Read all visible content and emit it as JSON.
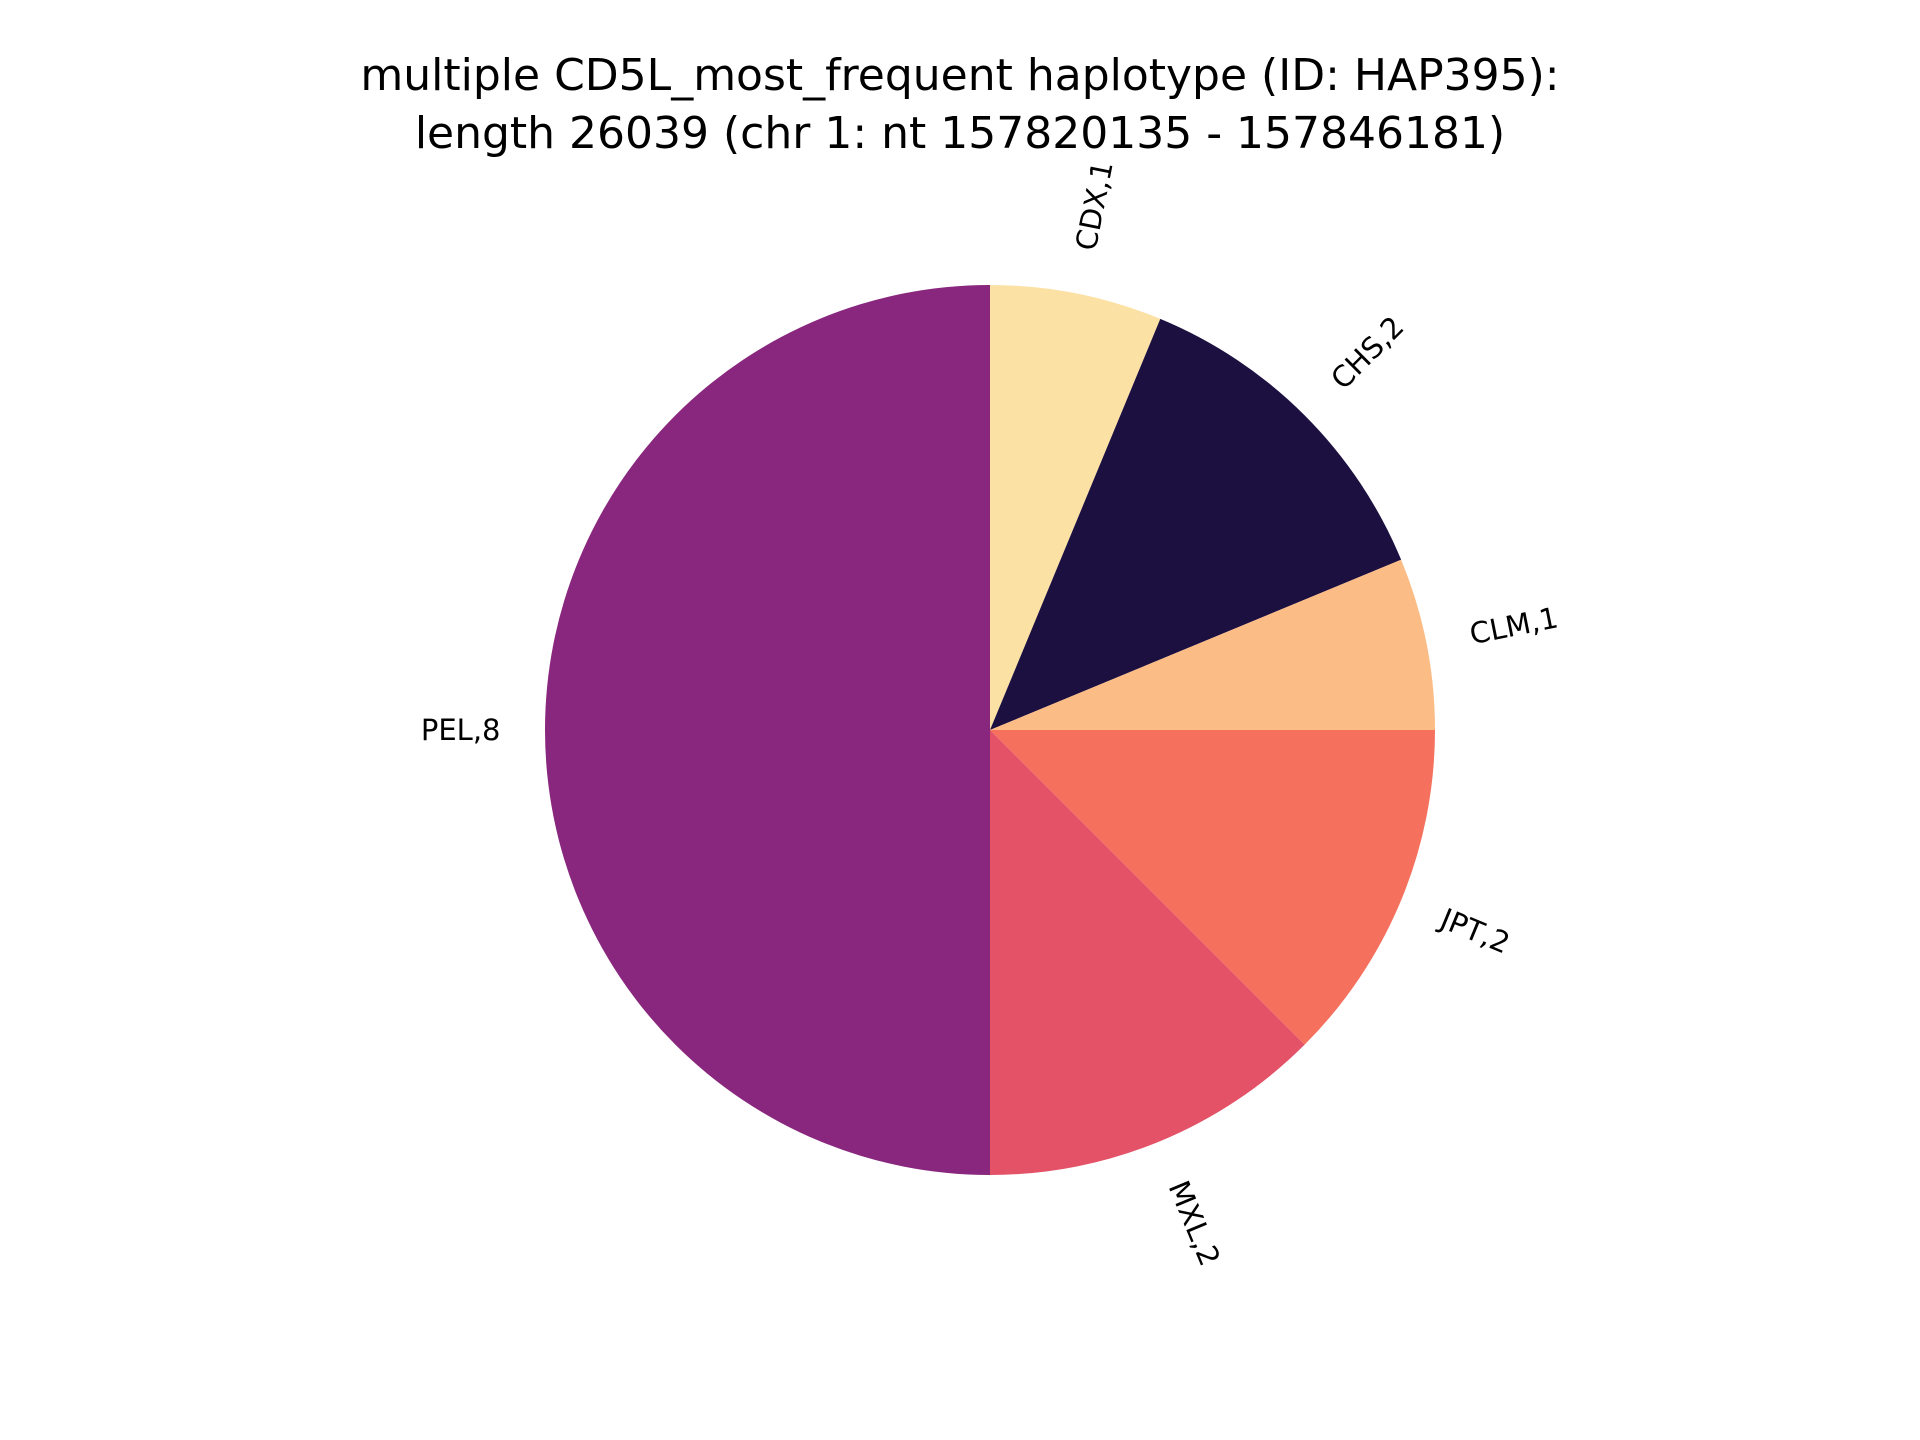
{
  "chart_data": {
    "type": "pie",
    "title": [
      "multiple CD5L_most_frequent haplotype (ID: HAP395):",
      "length 26039 (chr 1: nt 157820135 - 157846181)"
    ],
    "slices": [
      {
        "name": "CDX",
        "value": 1,
        "label": "CDX,1",
        "color": "#fce1a4"
      },
      {
        "name": "CHS",
        "value": 2,
        "label": "CHS,2",
        "color": "#1c1040"
      },
      {
        "name": "CLM",
        "value": 1,
        "label": "CLM,1",
        "color": "#fcbc85"
      },
      {
        "name": "JPT",
        "value": 2,
        "label": "JPT,2",
        "color": "#f5715e"
      },
      {
        "name": "MXL",
        "value": 2,
        "label": "MXL,2",
        "color": "#e35266"
      },
      {
        "name": "PEL",
        "value": 8,
        "label": "PEL,8",
        "color": "#88277d"
      }
    ],
    "start_angle_deg": 90,
    "direction": "clockwise",
    "legend": "none"
  }
}
